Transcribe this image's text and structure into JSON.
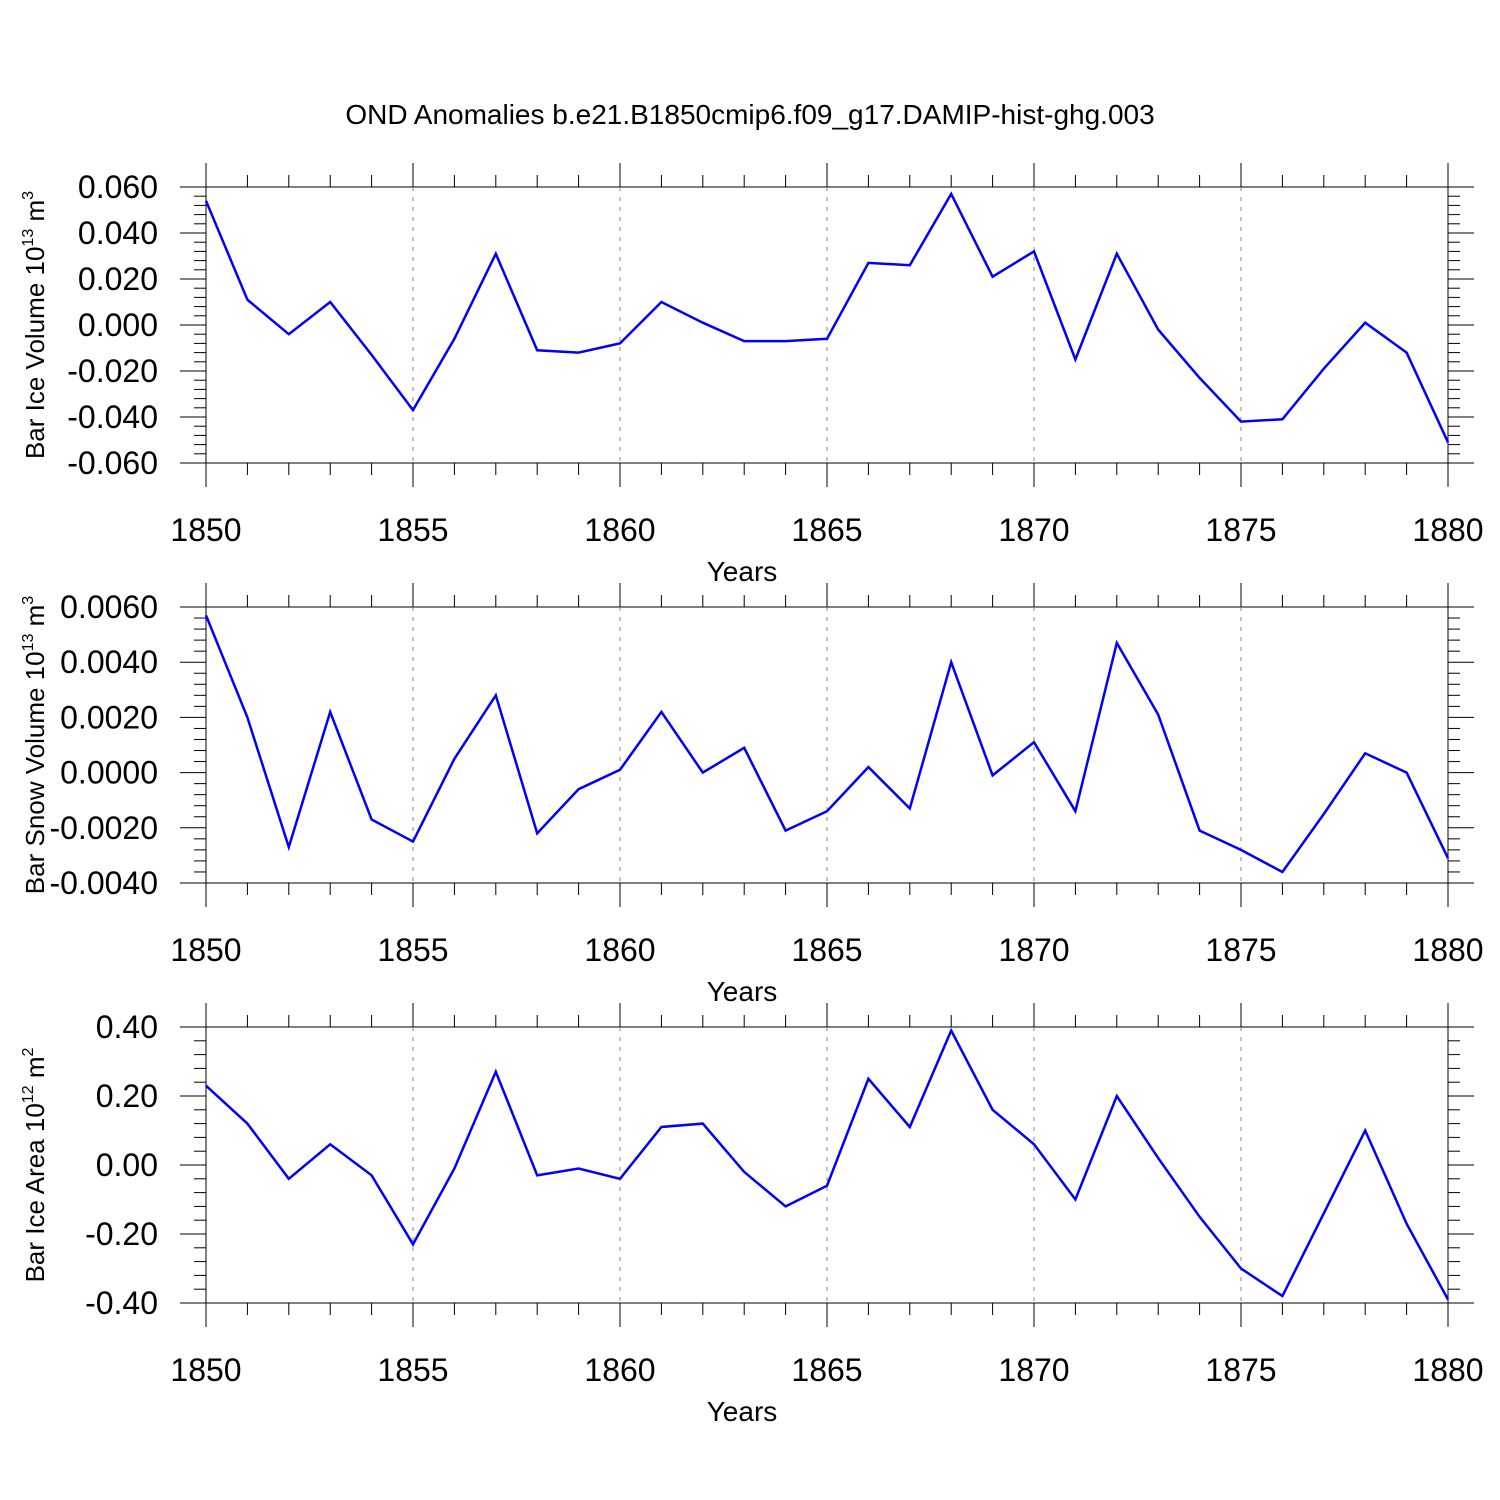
{
  "title": "OND Anomalies b.e21.B1850cmip6.f09_g17.DAMIP-hist-ghg.003",
  "colors": {
    "line": "#0000ff",
    "axis": "#000000",
    "grid": "#888888"
  },
  "chart_data": [
    {
      "type": "line",
      "xlabel": "Years",
      "ylabel_main": "Bar Ice Volume 10",
      "ylabel_exp": "13",
      "ylabel_unit": " m",
      "ylabel_unit_exp": "3",
      "xlim": [
        1850,
        1880
      ],
      "ylim": [
        -0.06,
        0.06
      ],
      "x_ticks": [
        "1850",
        "1855",
        "1860",
        "1865",
        "1870",
        "1875",
        "1880"
      ],
      "y_ticks": [
        "0.060",
        "0.040",
        "0.020",
        "0.000",
        "-0.020",
        "-0.040",
        "-0.060"
      ],
      "y_tick_values": [
        0.06,
        0.04,
        0.02,
        0.0,
        -0.02,
        -0.04,
        -0.06
      ],
      "x": [
        1850,
        1851,
        1852,
        1853,
        1854,
        1855,
        1856,
        1857,
        1858,
        1859,
        1860,
        1861,
        1862,
        1863,
        1864,
        1865,
        1866,
        1867,
        1868,
        1869,
        1870,
        1871,
        1872,
        1873,
        1874,
        1875,
        1876,
        1877,
        1878,
        1879,
        1880
      ],
      "values": [
        0.054,
        0.011,
        -0.004,
        0.01,
        -0.013,
        -0.037,
        -0.006,
        0.031,
        -0.011,
        -0.012,
        -0.008,
        0.01,
        0.001,
        -0.007,
        -0.007,
        -0.006,
        0.027,
        0.026,
        0.057,
        0.021,
        0.032,
        -0.015,
        0.031,
        -0.002,
        -0.023,
        -0.042,
        -0.041,
        -0.019,
        0.001,
        -0.012,
        -0.051
      ]
    },
    {
      "type": "line",
      "xlabel": "Years",
      "ylabel_main": "Bar Snow Volume 10",
      "ylabel_exp": "13",
      "ylabel_unit": " m",
      "ylabel_unit_exp": "3",
      "xlim": [
        1850,
        1880
      ],
      "ylim": [
        -0.004,
        0.006
      ],
      "x_ticks": [
        "1850",
        "1855",
        "1860",
        "1865",
        "1870",
        "1875",
        "1880"
      ],
      "y_ticks": [
        "0.0060",
        "0.0040",
        "0.0020",
        "0.0000",
        "-0.0020",
        "-0.0040"
      ],
      "y_tick_values": [
        0.006,
        0.004,
        0.002,
        0.0,
        -0.002,
        -0.004
      ],
      "x": [
        1850,
        1851,
        1852,
        1853,
        1854,
        1855,
        1856,
        1857,
        1858,
        1859,
        1860,
        1861,
        1862,
        1863,
        1864,
        1865,
        1866,
        1867,
        1868,
        1869,
        1870,
        1871,
        1872,
        1873,
        1874,
        1875,
        1876,
        1877,
        1878,
        1879,
        1880
      ],
      "values": [
        0.0057,
        0.002,
        -0.0027,
        0.0022,
        -0.0017,
        -0.0025,
        0.0005,
        0.0028,
        -0.0022,
        -0.0006,
        0.0001,
        0.0022,
        0.0,
        0.0009,
        -0.0021,
        -0.0014,
        0.0002,
        -0.0013,
        0.004,
        -0.0001,
        0.0011,
        -0.0014,
        0.0047,
        0.0021,
        -0.0021,
        -0.0028,
        -0.0036,
        -0.0015,
        0.0007,
        0.0,
        -0.0031
      ]
    },
    {
      "type": "line",
      "xlabel": "Years",
      "ylabel_main": "Bar Ice Area 10",
      "ylabel_exp": "12",
      "ylabel_unit": " m",
      "ylabel_unit_exp": "2",
      "xlim": [
        1850,
        1880
      ],
      "ylim": [
        -0.4,
        0.4
      ],
      "x_ticks": [
        "1850",
        "1855",
        "1860",
        "1865",
        "1870",
        "1875",
        "1880"
      ],
      "y_ticks": [
        "0.40",
        "0.20",
        "0.00",
        "-0.20",
        "-0.40"
      ],
      "y_tick_values": [
        0.4,
        0.2,
        0.0,
        -0.2,
        -0.4
      ],
      "x": [
        1850,
        1851,
        1852,
        1853,
        1854,
        1855,
        1856,
        1857,
        1858,
        1859,
        1860,
        1861,
        1862,
        1863,
        1864,
        1865,
        1866,
        1867,
        1868,
        1869,
        1870,
        1871,
        1872,
        1873,
        1874,
        1875,
        1876,
        1877,
        1878,
        1879,
        1880
      ],
      "values": [
        0.23,
        0.12,
        -0.04,
        0.06,
        -0.03,
        -0.23,
        -0.01,
        0.27,
        -0.03,
        -0.01,
        -0.04,
        0.11,
        0.12,
        -0.02,
        -0.12,
        -0.06,
        0.25,
        0.11,
        0.39,
        0.16,
        0.06,
        -0.1,
        0.2,
        0.02,
        -0.15,
        -0.3,
        -0.38,
        -0.14,
        0.1,
        -0.17,
        -0.39
      ]
    }
  ]
}
